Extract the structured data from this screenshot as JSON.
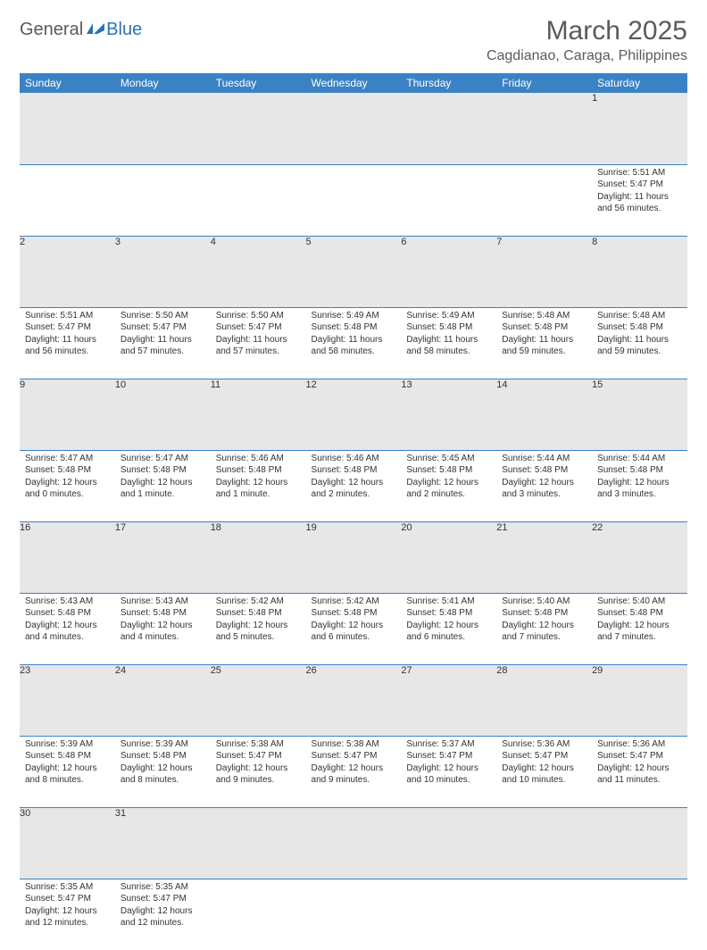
{
  "logo": {
    "text1": "General",
    "text2": "Blue"
  },
  "title": "March 2025",
  "location": "Cagdianao, Caraga, Philippines",
  "weekdays": [
    "Sunday",
    "Monday",
    "Tuesday",
    "Wednesday",
    "Thursday",
    "Friday",
    "Saturday"
  ],
  "colors": {
    "header_bg": "#3b82c4",
    "header_text": "#ffffff",
    "daynum_bg": "#e7e7e7",
    "border": "#3b82c4",
    "text": "#333333",
    "logo_gray": "#5a5a5a",
    "logo_blue": "#2a72b5"
  },
  "weeks": [
    [
      null,
      null,
      null,
      null,
      null,
      null,
      {
        "n": "1",
        "sr": "5:51 AM",
        "ss": "5:47 PM",
        "dl": "11 hours and 56 minutes."
      }
    ],
    [
      {
        "n": "2",
        "sr": "5:51 AM",
        "ss": "5:47 PM",
        "dl": "11 hours and 56 minutes."
      },
      {
        "n": "3",
        "sr": "5:50 AM",
        "ss": "5:47 PM",
        "dl": "11 hours and 57 minutes."
      },
      {
        "n": "4",
        "sr": "5:50 AM",
        "ss": "5:47 PM",
        "dl": "11 hours and 57 minutes."
      },
      {
        "n": "5",
        "sr": "5:49 AM",
        "ss": "5:48 PM",
        "dl": "11 hours and 58 minutes."
      },
      {
        "n": "6",
        "sr": "5:49 AM",
        "ss": "5:48 PM",
        "dl": "11 hours and 58 minutes."
      },
      {
        "n": "7",
        "sr": "5:48 AM",
        "ss": "5:48 PM",
        "dl": "11 hours and 59 minutes."
      },
      {
        "n": "8",
        "sr": "5:48 AM",
        "ss": "5:48 PM",
        "dl": "11 hours and 59 minutes."
      }
    ],
    [
      {
        "n": "9",
        "sr": "5:47 AM",
        "ss": "5:48 PM",
        "dl": "12 hours and 0 minutes."
      },
      {
        "n": "10",
        "sr": "5:47 AM",
        "ss": "5:48 PM",
        "dl": "12 hours and 1 minute."
      },
      {
        "n": "11",
        "sr": "5:46 AM",
        "ss": "5:48 PM",
        "dl": "12 hours and 1 minute."
      },
      {
        "n": "12",
        "sr": "5:46 AM",
        "ss": "5:48 PM",
        "dl": "12 hours and 2 minutes."
      },
      {
        "n": "13",
        "sr": "5:45 AM",
        "ss": "5:48 PM",
        "dl": "12 hours and 2 minutes."
      },
      {
        "n": "14",
        "sr": "5:44 AM",
        "ss": "5:48 PM",
        "dl": "12 hours and 3 minutes."
      },
      {
        "n": "15",
        "sr": "5:44 AM",
        "ss": "5:48 PM",
        "dl": "12 hours and 3 minutes."
      }
    ],
    [
      {
        "n": "16",
        "sr": "5:43 AM",
        "ss": "5:48 PM",
        "dl": "12 hours and 4 minutes."
      },
      {
        "n": "17",
        "sr": "5:43 AM",
        "ss": "5:48 PM",
        "dl": "12 hours and 4 minutes."
      },
      {
        "n": "18",
        "sr": "5:42 AM",
        "ss": "5:48 PM",
        "dl": "12 hours and 5 minutes."
      },
      {
        "n": "19",
        "sr": "5:42 AM",
        "ss": "5:48 PM",
        "dl": "12 hours and 6 minutes."
      },
      {
        "n": "20",
        "sr": "5:41 AM",
        "ss": "5:48 PM",
        "dl": "12 hours and 6 minutes."
      },
      {
        "n": "21",
        "sr": "5:40 AM",
        "ss": "5:48 PM",
        "dl": "12 hours and 7 minutes."
      },
      {
        "n": "22",
        "sr": "5:40 AM",
        "ss": "5:48 PM",
        "dl": "12 hours and 7 minutes."
      }
    ],
    [
      {
        "n": "23",
        "sr": "5:39 AM",
        "ss": "5:48 PM",
        "dl": "12 hours and 8 minutes."
      },
      {
        "n": "24",
        "sr": "5:39 AM",
        "ss": "5:48 PM",
        "dl": "12 hours and 8 minutes."
      },
      {
        "n": "25",
        "sr": "5:38 AM",
        "ss": "5:47 PM",
        "dl": "12 hours and 9 minutes."
      },
      {
        "n": "26",
        "sr": "5:38 AM",
        "ss": "5:47 PM",
        "dl": "12 hours and 9 minutes."
      },
      {
        "n": "27",
        "sr": "5:37 AM",
        "ss": "5:47 PM",
        "dl": "12 hours and 10 minutes."
      },
      {
        "n": "28",
        "sr": "5:36 AM",
        "ss": "5:47 PM",
        "dl": "12 hours and 10 minutes."
      },
      {
        "n": "29",
        "sr": "5:36 AM",
        "ss": "5:47 PM",
        "dl": "12 hours and 11 minutes."
      }
    ],
    [
      {
        "n": "30",
        "sr": "5:35 AM",
        "ss": "5:47 PM",
        "dl": "12 hours and 12 minutes."
      },
      {
        "n": "31",
        "sr": "5:35 AM",
        "ss": "5:47 PM",
        "dl": "12 hours and 12 minutes."
      },
      null,
      null,
      null,
      null,
      null
    ]
  ],
  "labels": {
    "sunrise": "Sunrise: ",
    "sunset": "Sunset: ",
    "daylight": "Daylight: "
  }
}
